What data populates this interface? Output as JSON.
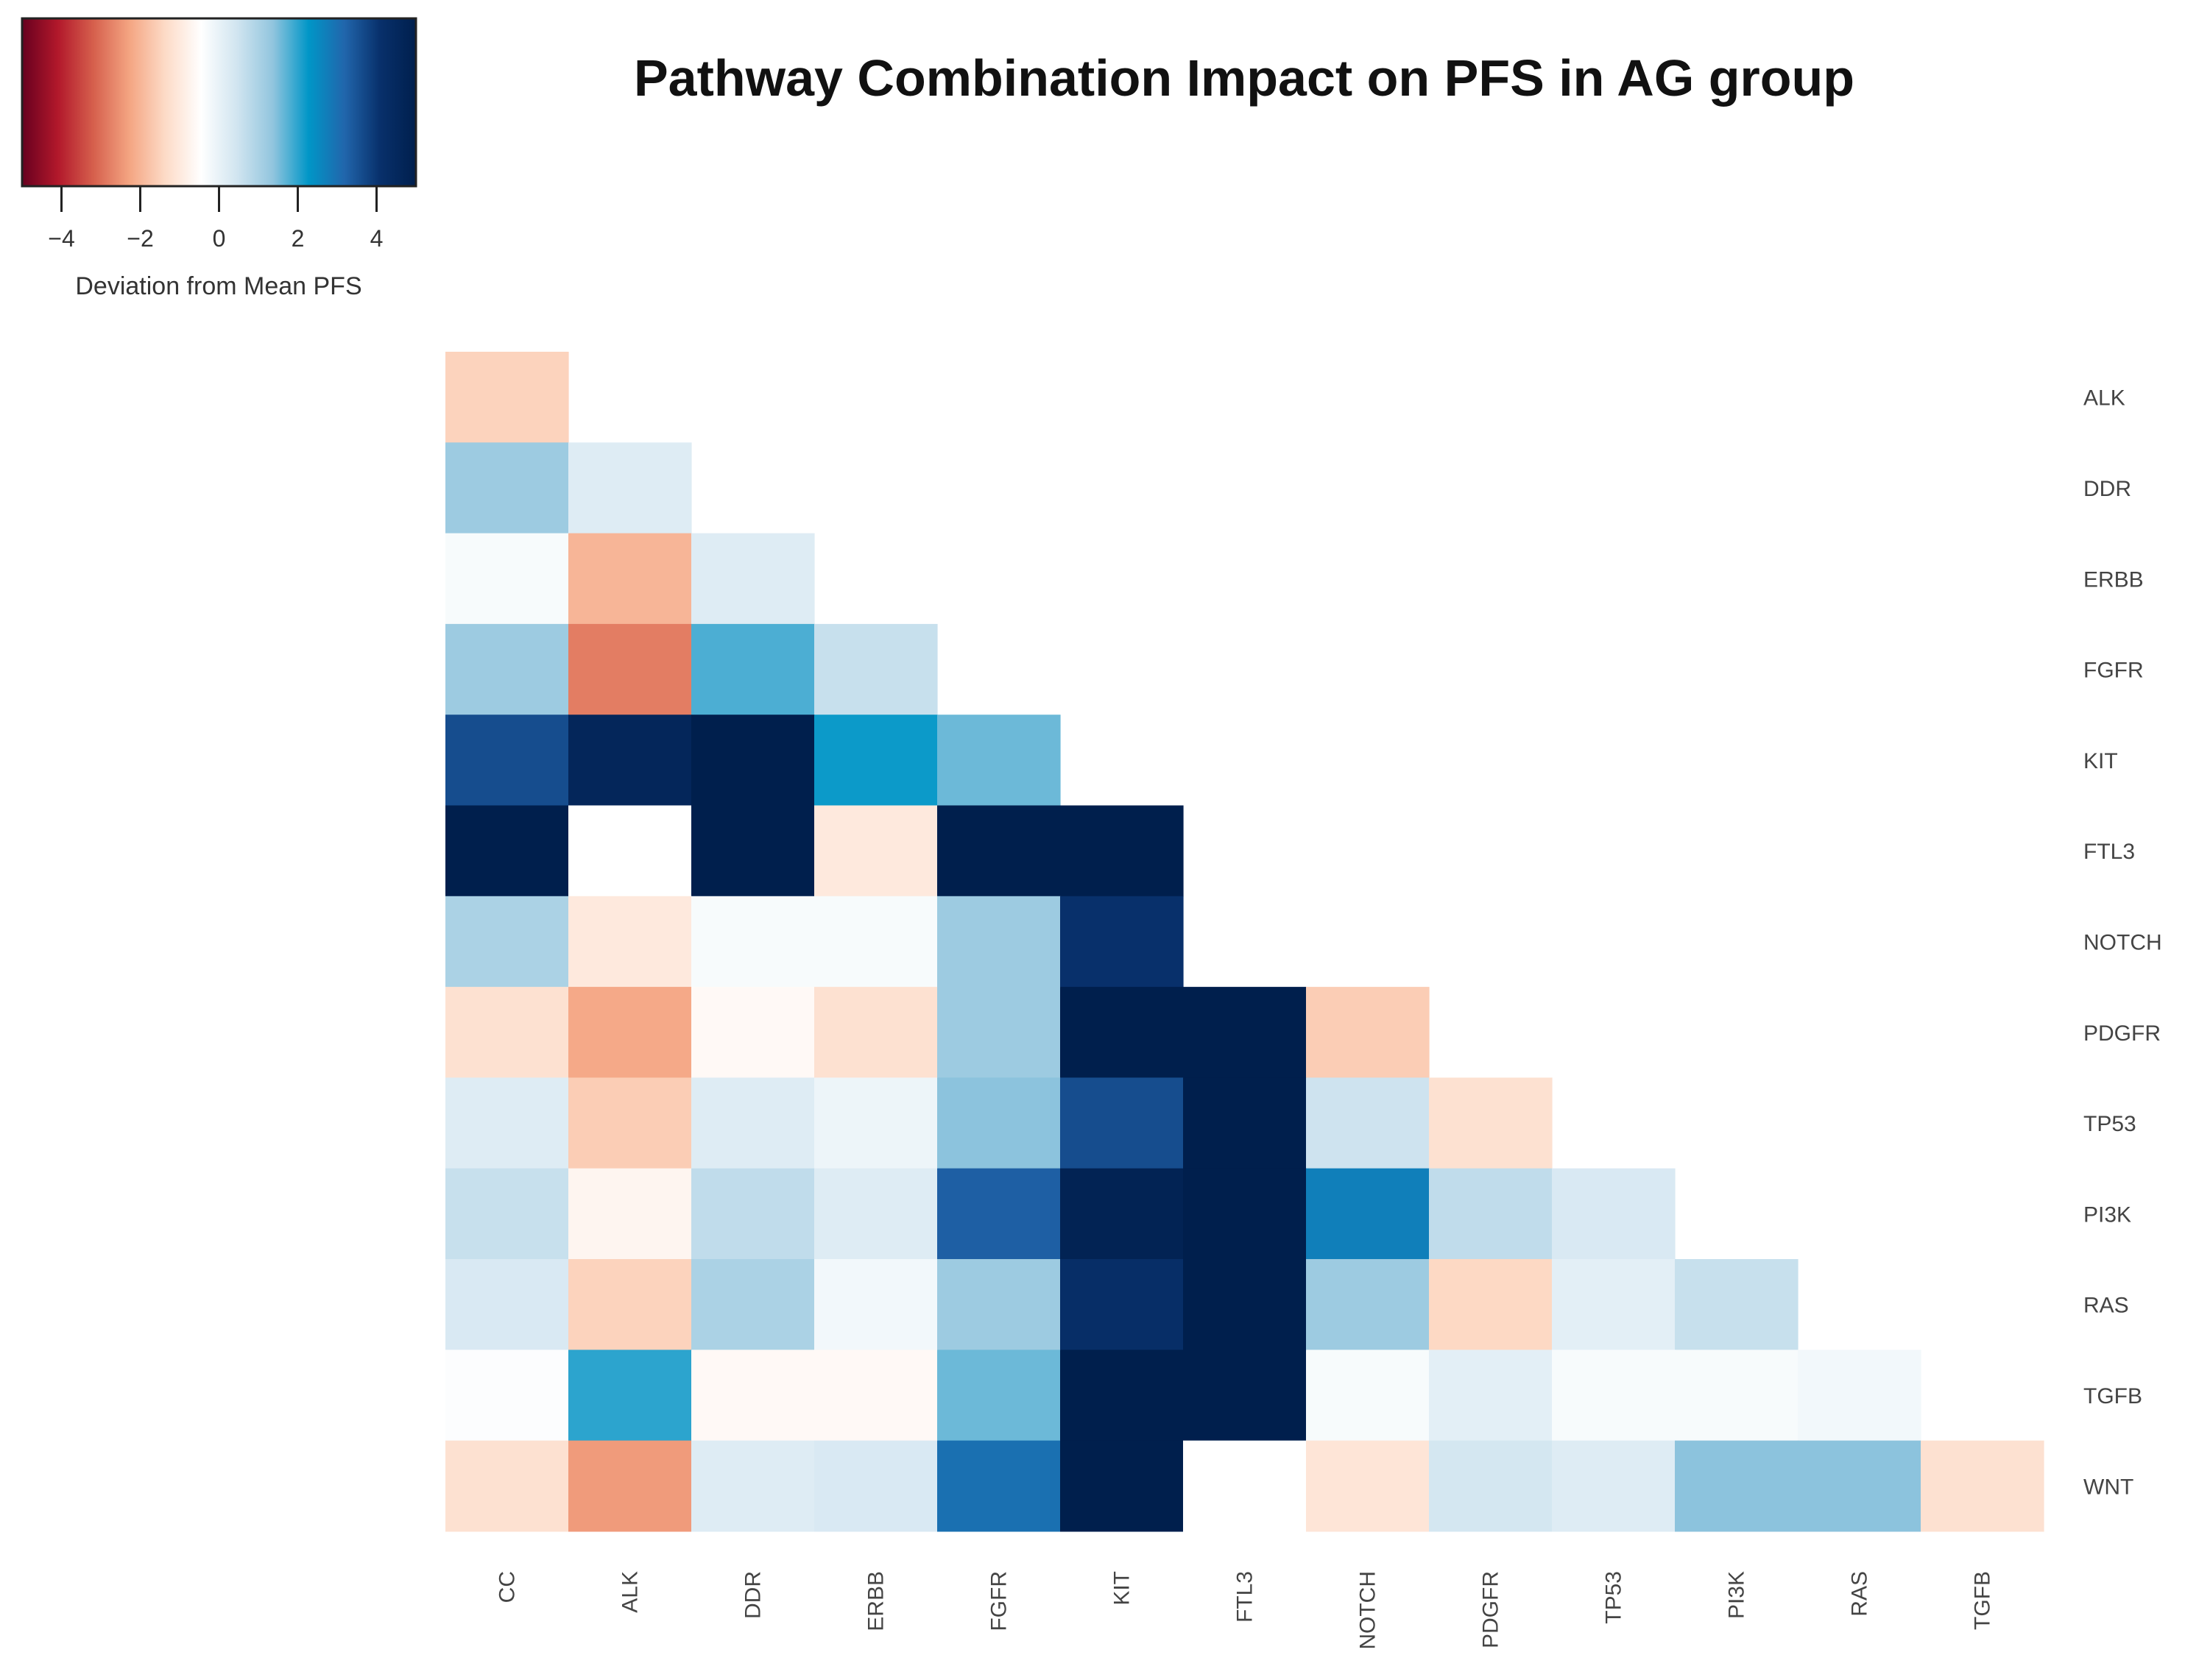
{
  "chart_data": {
    "type": "heatmap",
    "title": "Pathway Combination Impact on PFS in AG group",
    "row_labels": [
      "ALK",
      "DDR",
      "ERBB",
      "FGFR",
      "KIT",
      "FTL3",
      "NOTCH",
      "PDGFR",
      "TP53",
      "PI3K",
      "RAS",
      "TGFB",
      "WNT"
    ],
    "col_labels": [
      "CC",
      "ALK",
      "DDR",
      "ERBB",
      "FGFR",
      "KIT",
      "FTL3",
      "NOTCH",
      "PDGFR",
      "TP53",
      "PI3K",
      "RAS",
      "TGFB"
    ],
    "values": [
      [
        -1.5
      ],
      [
        1.2,
        0.2
      ],
      [
        -0.3,
        -2.0,
        0.2
      ],
      [
        1.2,
        -2.8,
        1.8,
        0.6
      ],
      [
        3.6,
        4.6,
        5.0,
        2.2,
        1.6
      ],
      [
        5.0,
        null,
        5.0,
        -1.0,
        5.0,
        5.0
      ],
      [
        1.0,
        -1.0,
        -0.3,
        -0.3,
        1.2,
        4.1
      ],
      [
        -1.2,
        -2.2,
        -0.6,
        -1.2,
        1.2,
        5.0,
        5.0,
        -1.6
      ],
      [
        0.2,
        -1.6,
        0.2,
        -0.1,
        1.4,
        3.6,
        5.0,
        0.5,
        -1.2
      ],
      [
        0.6,
        -0.7,
        0.7,
        0.2,
        3.3,
        4.8,
        5.0,
        2.7,
        0.7,
        0.3
      ],
      [
        0.3,
        -1.5,
        1.0,
        -0.2,
        1.2,
        4.2,
        5.0,
        1.2,
        -1.4,
        0.1,
        0.6
      ],
      [
        -0.4,
        2.0,
        -0.6,
        -0.6,
        1.6,
        5.0,
        5.0,
        -0.3,
        0.1,
        -0.3,
        -0.3,
        -0.2
      ],
      [
        -1.2,
        -2.4,
        0.2,
        0.3,
        3.0,
        5.0,
        null,
        -1.1,
        0.4,
        0.2,
        1.4,
        1.4,
        -1.2
      ]
    ],
    "colorbar": {
      "title": "Deviation from Mean PFS",
      "min": -5,
      "max": 5,
      "ticks": [
        -4,
        -2,
        0,
        2,
        4
      ],
      "tick_labels": [
        "−4",
        "−2",
        "0",
        "2",
        "4"
      ],
      "colors": [
        "#67001f",
        "#b2182b",
        "#d6604d",
        "#f4a582",
        "#fddbc7",
        "#ffffff",
        "#d1e5f0",
        "#92c5de",
        "#0096c7",
        "#2166ac",
        "#08306b",
        "#001f4d"
      ]
    }
  }
}
